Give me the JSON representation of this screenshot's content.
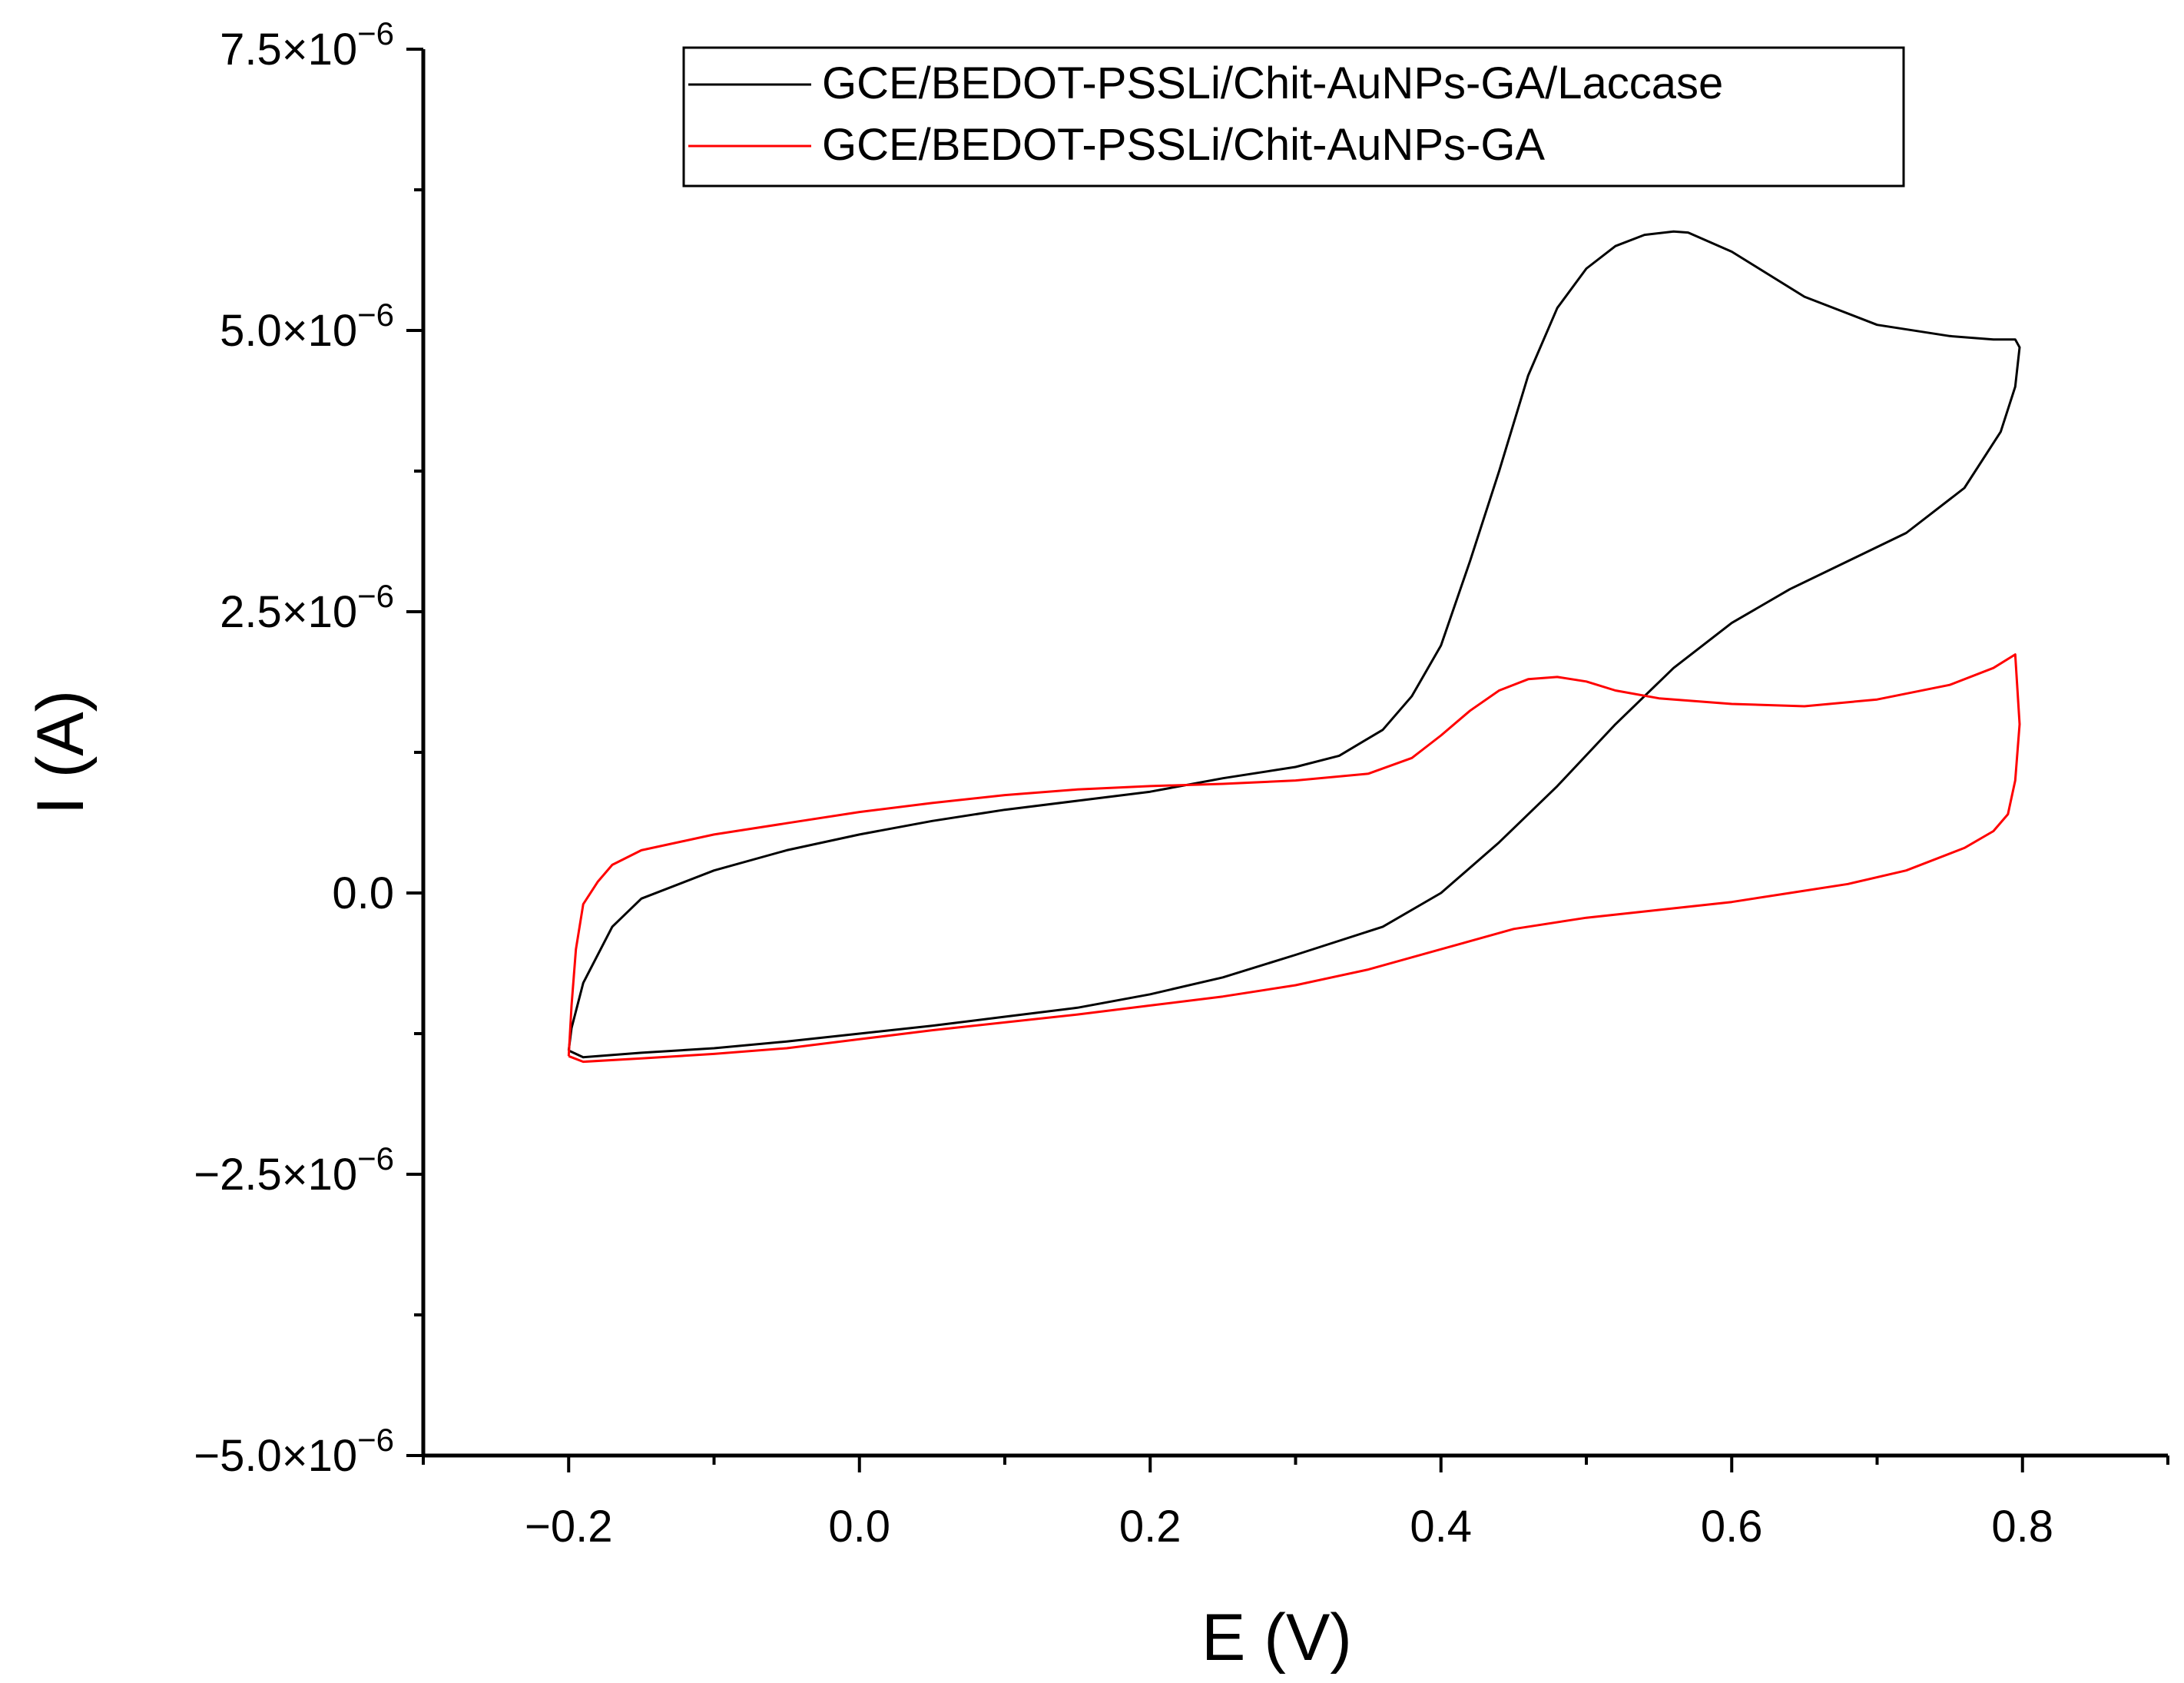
{
  "chart_data": {
    "type": "line",
    "title": "",
    "xlabel": "E (V)",
    "ylabel": "I (A)",
    "xlim": [
      -0.3,
      0.9
    ],
    "ylim": [
      -5e-06,
      7.5e-06
    ],
    "x_ticks": [
      -0.2,
      0.0,
      0.2,
      0.4,
      0.6,
      0.8
    ],
    "x_tick_labels": [
      "−0.2",
      "0.0",
      "0.2",
      "0.4",
      "0.6",
      "0.8"
    ],
    "y_ticks": [
      -5e-06,
      -2.5e-06,
      0,
      2.5e-06,
      5e-06,
      7.5e-06
    ],
    "y_tick_mantissas": [
      "−5.0",
      "−2.5",
      "0.0",
      "2.5",
      "5.0",
      "7.5"
    ],
    "y_tick_exponent": "−6",
    "grid": false,
    "legend_position": "top-right",
    "series": [
      {
        "name": "GCE/BEDOT-PSSLi/Chit-AuNPs-GA/Laccase",
        "color": "#000000",
        "x": [
          -0.2,
          -0.198,
          -0.19,
          -0.17,
          -0.15,
          -0.1,
          -0.05,
          0.0,
          0.05,
          0.1,
          0.15,
          0.2,
          0.25,
          0.3,
          0.33,
          0.36,
          0.38,
          0.4,
          0.42,
          0.44,
          0.46,
          0.48,
          0.5,
          0.52,
          0.54,
          0.56,
          0.57,
          0.6,
          0.65,
          0.7,
          0.75,
          0.78,
          0.795,
          0.798,
          0.795,
          0.785,
          0.76,
          0.72,
          0.68,
          0.64,
          0.6,
          0.56,
          0.52,
          0.48,
          0.44,
          0.4,
          0.36,
          0.3,
          0.25,
          0.2,
          0.15,
          0.1,
          0.05,
          0.0,
          -0.05,
          -0.1,
          -0.15,
          -0.19,
          -0.2
        ],
        "y": [
          -1.4e-06,
          -1.2e-06,
          -8e-07,
          -3e-07,
          -5e-08,
          2e-07,
          3.8e-07,
          5.2e-07,
          6.4e-07,
          7.4e-07,
          8.2e-07,
          9e-07,
          1.02e-06,
          1.12e-06,
          1.22e-06,
          1.45e-06,
          1.75e-06,
          2.2e-06,
          2.95e-06,
          3.75e-06,
          4.6e-06,
          5.2e-06,
          5.55e-06,
          5.75e-06,
          5.85e-06,
          5.88e-06,
          5.87e-06,
          5.7e-06,
          5.3e-06,
          5.05e-06,
          4.95e-06,
          4.92e-06,
          4.92e-06,
          4.85e-06,
          4.5e-06,
          4.1e-06,
          3.6e-06,
          3.2e-06,
          2.95e-06,
          2.7e-06,
          2.4e-06,
          2e-06,
          1.5e-06,
          9.5e-07,
          4.5e-07,
          0.0,
          -3e-07,
          -5.5e-07,
          -7.5e-07,
          -9e-07,
          -1.02e-06,
          -1.1e-06,
          -1.18e-06,
          -1.25e-06,
          -1.32e-06,
          -1.38e-06,
          -1.42e-06,
          -1.46e-06,
          -1.4e-06
        ]
      },
      {
        "name": "GCE/BEDOT-PSSLi/Chit-AuNPs-GA",
        "color": "#ff0000",
        "x": [
          -0.2,
          -0.198,
          -0.195,
          -0.19,
          -0.18,
          -0.17,
          -0.15,
          -0.1,
          -0.05,
          0.0,
          0.05,
          0.1,
          0.15,
          0.2,
          0.25,
          0.3,
          0.35,
          0.38,
          0.4,
          0.42,
          0.44,
          0.46,
          0.48,
          0.5,
          0.52,
          0.55,
          0.6,
          0.65,
          0.7,
          0.75,
          0.78,
          0.795,
          0.798,
          0.795,
          0.79,
          0.78,
          0.76,
          0.72,
          0.68,
          0.64,
          0.6,
          0.55,
          0.5,
          0.45,
          0.4,
          0.35,
          0.3,
          0.25,
          0.2,
          0.15,
          0.1,
          0.05,
          0.0,
          -0.05,
          -0.1,
          -0.15,
          -0.19,
          -0.2
        ],
        "y": [
          -1.45e-06,
          -1e-06,
          -5e-07,
          -1e-07,
          1e-07,
          2.5e-07,
          3.8e-07,
          5.2e-07,
          6.2e-07,
          7.2e-07,
          8e-07,
          8.7e-07,
          9.2e-07,
          9.5e-07,
          9.7e-07,
          1e-06,
          1.06e-06,
          1.2e-06,
          1.4e-06,
          1.62e-06,
          1.8e-06,
          1.9e-06,
          1.92e-06,
          1.88e-06,
          1.8e-06,
          1.73e-06,
          1.68e-06,
          1.66e-06,
          1.72e-06,
          1.85e-06,
          2e-06,
          2.12e-06,
          1.5e-06,
          1e-06,
          7e-07,
          5.5e-07,
          4e-07,
          2e-07,
          8e-08,
          0.0,
          -8e-08,
          -1.5e-07,
          -2.2e-07,
          -3.2e-07,
          -5e-07,
          -6.8e-07,
          -8.2e-07,
          -9.2e-07,
          -1e-06,
          -1.08e-06,
          -1.15e-06,
          -1.22e-06,
          -1.3e-06,
          -1.38e-06,
          -1.43e-06,
          -1.47e-06,
          -1.5e-06,
          -1.45e-06
        ]
      }
    ]
  }
}
